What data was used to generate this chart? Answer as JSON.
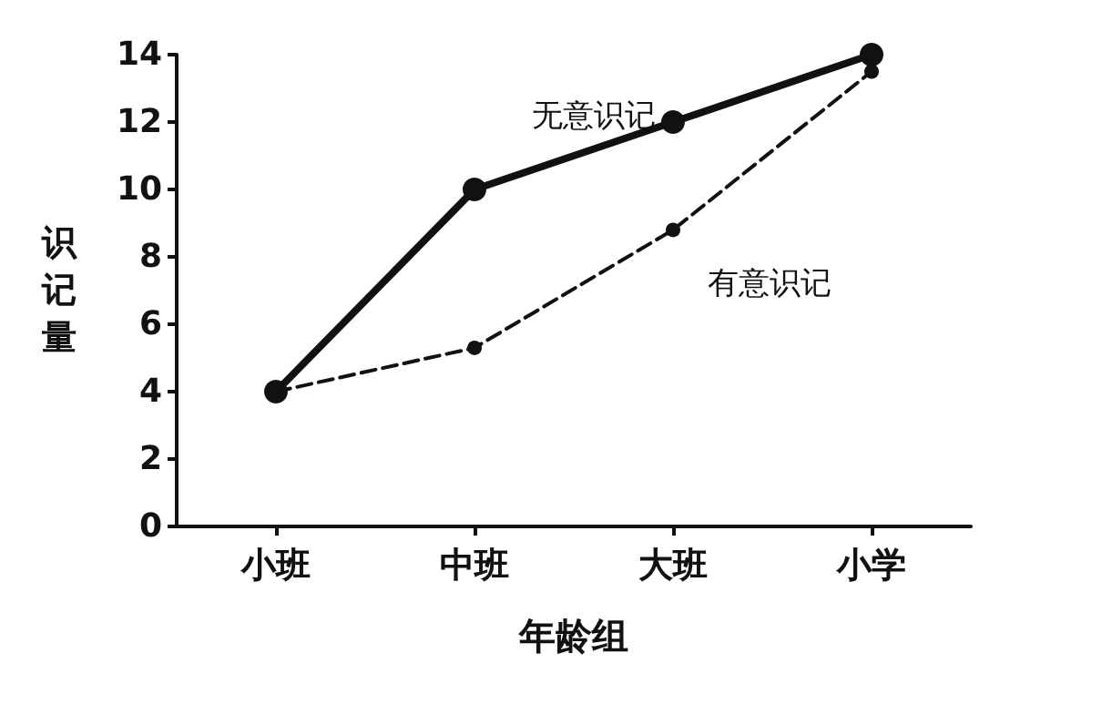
{
  "chart_data": {
    "type": "line",
    "xlabel": "年龄组",
    "ylabel": "识记量",
    "categories": [
      "小班",
      "中班",
      "大班",
      "小学"
    ],
    "series": [
      {
        "name": "无意识记",
        "color": "#111111",
        "values": [
          4,
          10,
          12,
          14
        ],
        "line_style": "solid"
      },
      {
        "name": "有意识记",
        "color": "#111111",
        "values": [
          4,
          5.3,
          8.8,
          13.5
        ],
        "line_style": "dashed"
      }
    ],
    "ylim": [
      0,
      14
    ],
    "yticks": [
      0,
      2,
      4,
      6,
      8,
      10,
      12,
      14
    ],
    "grid": false,
    "legend": false,
    "marker": "circle"
  }
}
